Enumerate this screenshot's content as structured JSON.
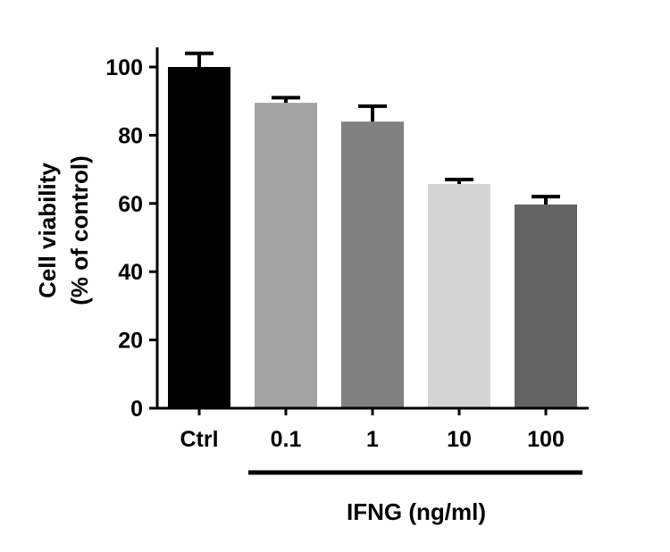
{
  "chart_data": {
    "type": "bar",
    "title": "",
    "categories": [
      "Ctrl",
      "0.1",
      "1",
      "10",
      "100"
    ],
    "values": [
      100,
      89.5,
      84,
      65.7,
      59.7
    ],
    "errors": [
      4,
      1.5,
      4.5,
      1.3,
      2.3
    ],
    "colors": [
      "#000000",
      "#a3a3a3",
      "#808080",
      "#d4d4d4",
      "#636363"
    ],
    "ylabel_line1": "Cell viability",
    "ylabel_line2": "(% of control)",
    "xlabel": "IFNG (ng/ml)",
    "yticks": [
      "0",
      "20",
      "40",
      "60",
      "80",
      "100"
    ],
    "ylim": [
      0,
      100
    ],
    "grid": false,
    "legend": "none"
  }
}
